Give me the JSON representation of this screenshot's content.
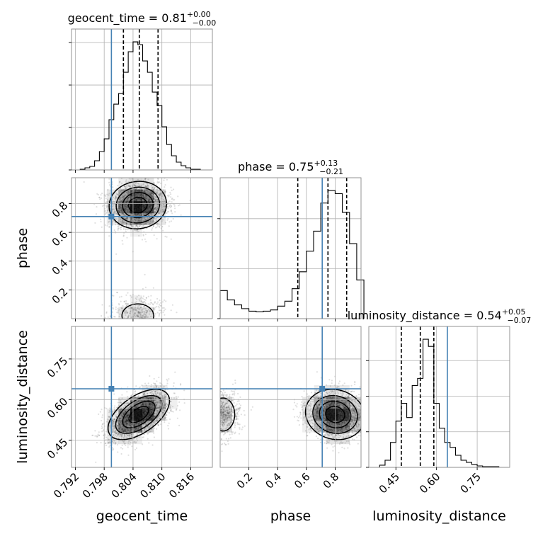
{
  "chart_data": {
    "type": "corner",
    "parameters": [
      "geocent_time",
      "phase",
      "luminosity_distance"
    ],
    "axis_labels": {
      "geocent_time": "geocent_time",
      "phase": "phase",
      "luminosity_distance": "luminosity_distance"
    },
    "truths": {
      "geocent_time": 0.7995,
      "phase": 0.71,
      "luminosity_distance": 0.64
    },
    "truth_color": "#4682b4",
    "ranges": {
      "geocent_time": [
        0.7912,
        0.8205
      ],
      "phase": [
        0.0,
        0.98
      ],
      "luminosity_distance": [
        0.35,
        0.87
      ]
    },
    "ticks": {
      "geocent_time": {
        "values": [
          0.792,
          0.798,
          0.804,
          0.81,
          0.816
        ],
        "labels": [
          "0.792",
          "0.798",
          "0.804",
          "0.810",
          "0.816"
        ]
      },
      "phase": {
        "values": [
          0.2,
          0.4,
          0.6,
          0.8
        ],
        "labels": [
          "0.2",
          "0.4",
          "0.6",
          "0.8"
        ]
      },
      "luminosity_distance": {
        "values": [
          0.45,
          0.6,
          0.75
        ],
        "labels": [
          "0.45",
          "0.60",
          "0.75"
        ]
      }
    },
    "marginals": {
      "geocent_time": {
        "title": {
          "name": "geocent_time",
          "value": "0.81",
          "upper": "+0.00",
          "lower": "−0.00"
        },
        "quantiles": [
          0.802,
          0.8053,
          0.8092
        ],
        "bin_edges": [
          0.793,
          0.794,
          0.795,
          0.796,
          0.797,
          0.798,
          0.799,
          0.8,
          0.801,
          0.802,
          0.803,
          0.804,
          0.805,
          0.806,
          0.807,
          0.808,
          0.809,
          0.81,
          0.811,
          0.812,
          0.813,
          0.814,
          0.815,
          0.816,
          0.817,
          0.818
        ],
        "counts": [
          1,
          3,
          5,
          13,
          26,
          44,
          71,
          93,
          108,
          138,
          167,
          181,
          177,
          154,
          138,
          110,
          91,
          61,
          36,
          20,
          11,
          6,
          3,
          1,
          1
        ],
        "count_ticks": [
          0,
          60,
          120,
          180
        ]
      },
      "phase": {
        "title": {
          "name": "phase",
          "value": "0.75",
          "upper": "+0.13",
          "lower": "−0.21"
        },
        "quantiles": [
          0.54,
          0.75,
          0.88
        ],
        "bin_edges": [
          0.0,
          0.05,
          0.1,
          0.15,
          0.2,
          0.25,
          0.3,
          0.35,
          0.4,
          0.45,
          0.5,
          0.55,
          0.6,
          0.65,
          0.7,
          0.75,
          0.8,
          0.85,
          0.9,
          0.95,
          1.0
        ],
        "counts": [
          45,
          30,
          22,
          16,
          12,
          11,
          12,
          14,
          20,
          28,
          48,
          75,
          108,
          140,
          185,
          205,
          200,
          170,
          120,
          62
        ],
        "count_ticks": [
          0,
          80,
          160
        ]
      },
      "luminosity_distance": {
        "title": {
          "name": "luminosity_distance",
          "value": "0.54",
          "upper": "+0.05",
          "lower": "−0.07"
        },
        "quantiles": [
          0.47,
          0.54,
          0.59
        ],
        "bin_edges": [
          0.39,
          0.41,
          0.43,
          0.45,
          0.47,
          0.49,
          0.51,
          0.53,
          0.55,
          0.57,
          0.59,
          0.61,
          0.63,
          0.65,
          0.67,
          0.69,
          0.71,
          0.73,
          0.75,
          0.77,
          0.79,
          0.81,
          0.83
        ],
        "counts": [
          3,
          10,
          35,
          65,
          90,
          70,
          115,
          125,
          180,
          170,
          90,
          55,
          35,
          28,
          17,
          10,
          7,
          4,
          2,
          1,
          1,
          1
        ],
        "count_ticks": [
          0,
          50,
          100,
          150
        ]
      }
    },
    "density_components": {
      "phase|geocent_time": [
        {
          "mx": 0.805,
          "my": 0.79,
          "sx": 0.0029,
          "sy": 0.08,
          "rho": 0.05,
          "w": 1.0
        },
        {
          "mx": 0.805,
          "my": 0.02,
          "sx": 0.003,
          "sy": 0.075,
          "rho": 0.0,
          "w": 0.22
        }
      ],
      "luminosity_distance|geocent_time": [
        {
          "mx": 0.8052,
          "my": 0.545,
          "sx": 0.0031,
          "sy": 0.045,
          "rho": 0.55,
          "w": 1.0
        }
      ],
      "luminosity_distance|phase": [
        {
          "mx": 0.8,
          "my": 0.545,
          "sx": 0.1,
          "sy": 0.045,
          "rho": -0.1,
          "w": 1.0
        },
        {
          "mx": 0.02,
          "my": 0.545,
          "sx": 0.06,
          "sy": 0.045,
          "rho": 0.0,
          "w": 0.3
        }
      ]
    },
    "contour_levels": [
      0.12,
      0.3,
      0.55,
      0.8
    ],
    "grid": true
  }
}
